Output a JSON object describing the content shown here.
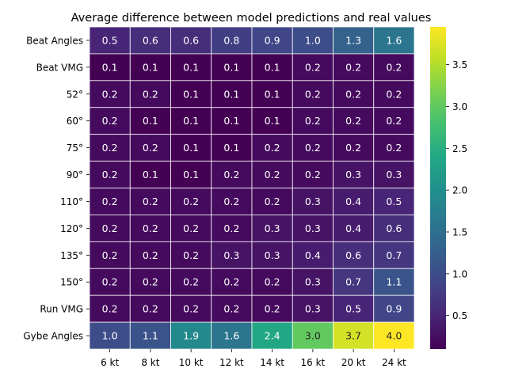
{
  "chart_data": {
    "type": "heatmap",
    "title": "Average difference between model predictions and real values",
    "xlabel": "",
    "ylabel": "",
    "x_categories": [
      "6 kt",
      "8 kt",
      "10 kt",
      "12 kt",
      "14 kt",
      "16 kt",
      "20 kt",
      "24 kt"
    ],
    "y_categories": [
      "Beat Angles",
      "Beat VMG",
      "52°",
      "60°",
      "75°",
      "90°",
      "110°",
      "120°",
      "135°",
      "150°",
      "Run VMG",
      "Gybe Angles"
    ],
    "values": [
      [
        0.5,
        0.6,
        0.6,
        0.8,
        0.9,
        1.0,
        1.3,
        1.6
      ],
      [
        0.1,
        0.1,
        0.1,
        0.1,
        0.1,
        0.2,
        0.2,
        0.2
      ],
      [
        0.2,
        0.2,
        0.1,
        0.1,
        0.1,
        0.2,
        0.2,
        0.2
      ],
      [
        0.2,
        0.1,
        0.1,
        0.1,
        0.1,
        0.2,
        0.2,
        0.2
      ],
      [
        0.2,
        0.2,
        0.1,
        0.1,
        0.2,
        0.2,
        0.2,
        0.2
      ],
      [
        0.2,
        0.1,
        0.1,
        0.2,
        0.2,
        0.2,
        0.3,
        0.3
      ],
      [
        0.2,
        0.2,
        0.2,
        0.2,
        0.2,
        0.3,
        0.4,
        0.5
      ],
      [
        0.2,
        0.2,
        0.2,
        0.2,
        0.3,
        0.3,
        0.4,
        0.6
      ],
      [
        0.2,
        0.2,
        0.2,
        0.3,
        0.3,
        0.4,
        0.6,
        0.7
      ],
      [
        0.2,
        0.2,
        0.2,
        0.2,
        0.2,
        0.3,
        0.7,
        1.1
      ],
      [
        0.2,
        0.2,
        0.2,
        0.2,
        0.2,
        0.3,
        0.5,
        0.9
      ],
      [
        1.0,
        1.1,
        1.9,
        1.6,
        2.4,
        3.0,
        3.7,
        4.0
      ]
    ],
    "colormap": "viridis",
    "color_range": [
      0.1,
      3.95
    ],
    "colorbar_ticks": [
      "0.5",
      "1.0",
      "1.5",
      "2.0",
      "2.5",
      "3.0",
      "3.5"
    ],
    "grid": true,
    "legend": "colorbar-right"
  }
}
